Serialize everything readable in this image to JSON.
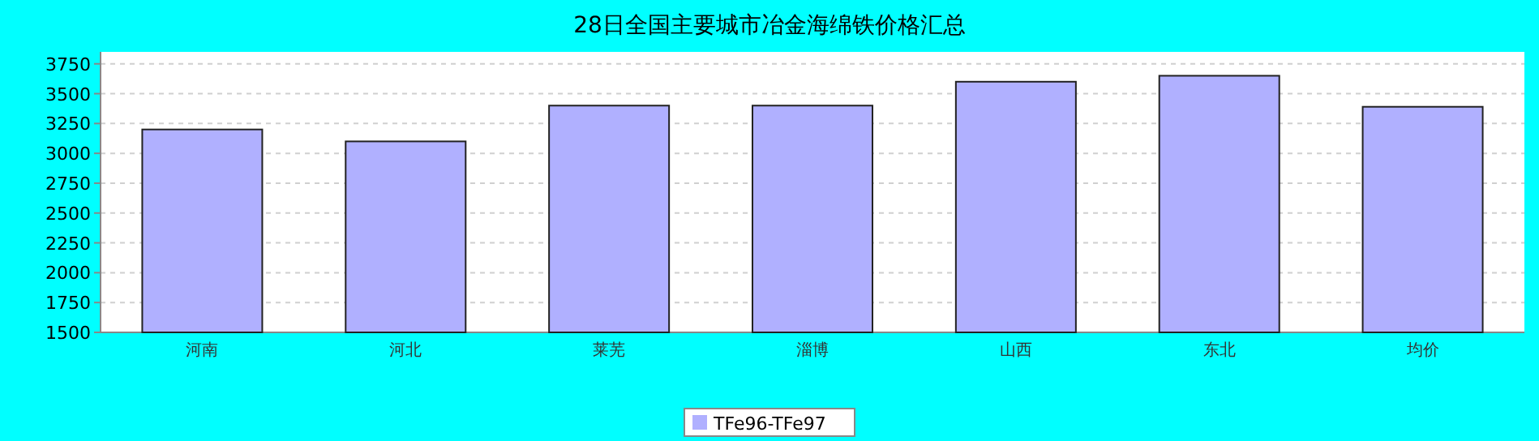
{
  "chart_data": {
    "type": "bar",
    "title": "28日全国主要城市冶金海绵铁价格汇总",
    "categories": [
      "河南",
      "河北",
      "莱芜",
      "淄博",
      "山西",
      "东北",
      "均价"
    ],
    "series": [
      {
        "name": "TFe96-TFe97",
        "color": "#b0b0ff",
        "values": [
          3200,
          3100,
          3400,
          3400,
          3600,
          3650,
          3390
        ]
      }
    ],
    "ylim": [
      1500,
      3850
    ],
    "yticks": [
      1500,
      1750,
      2000,
      2250,
      2500,
      2750,
      3000,
      3250,
      3500,
      3750
    ],
    "grid": "y",
    "legend": "bottom"
  }
}
